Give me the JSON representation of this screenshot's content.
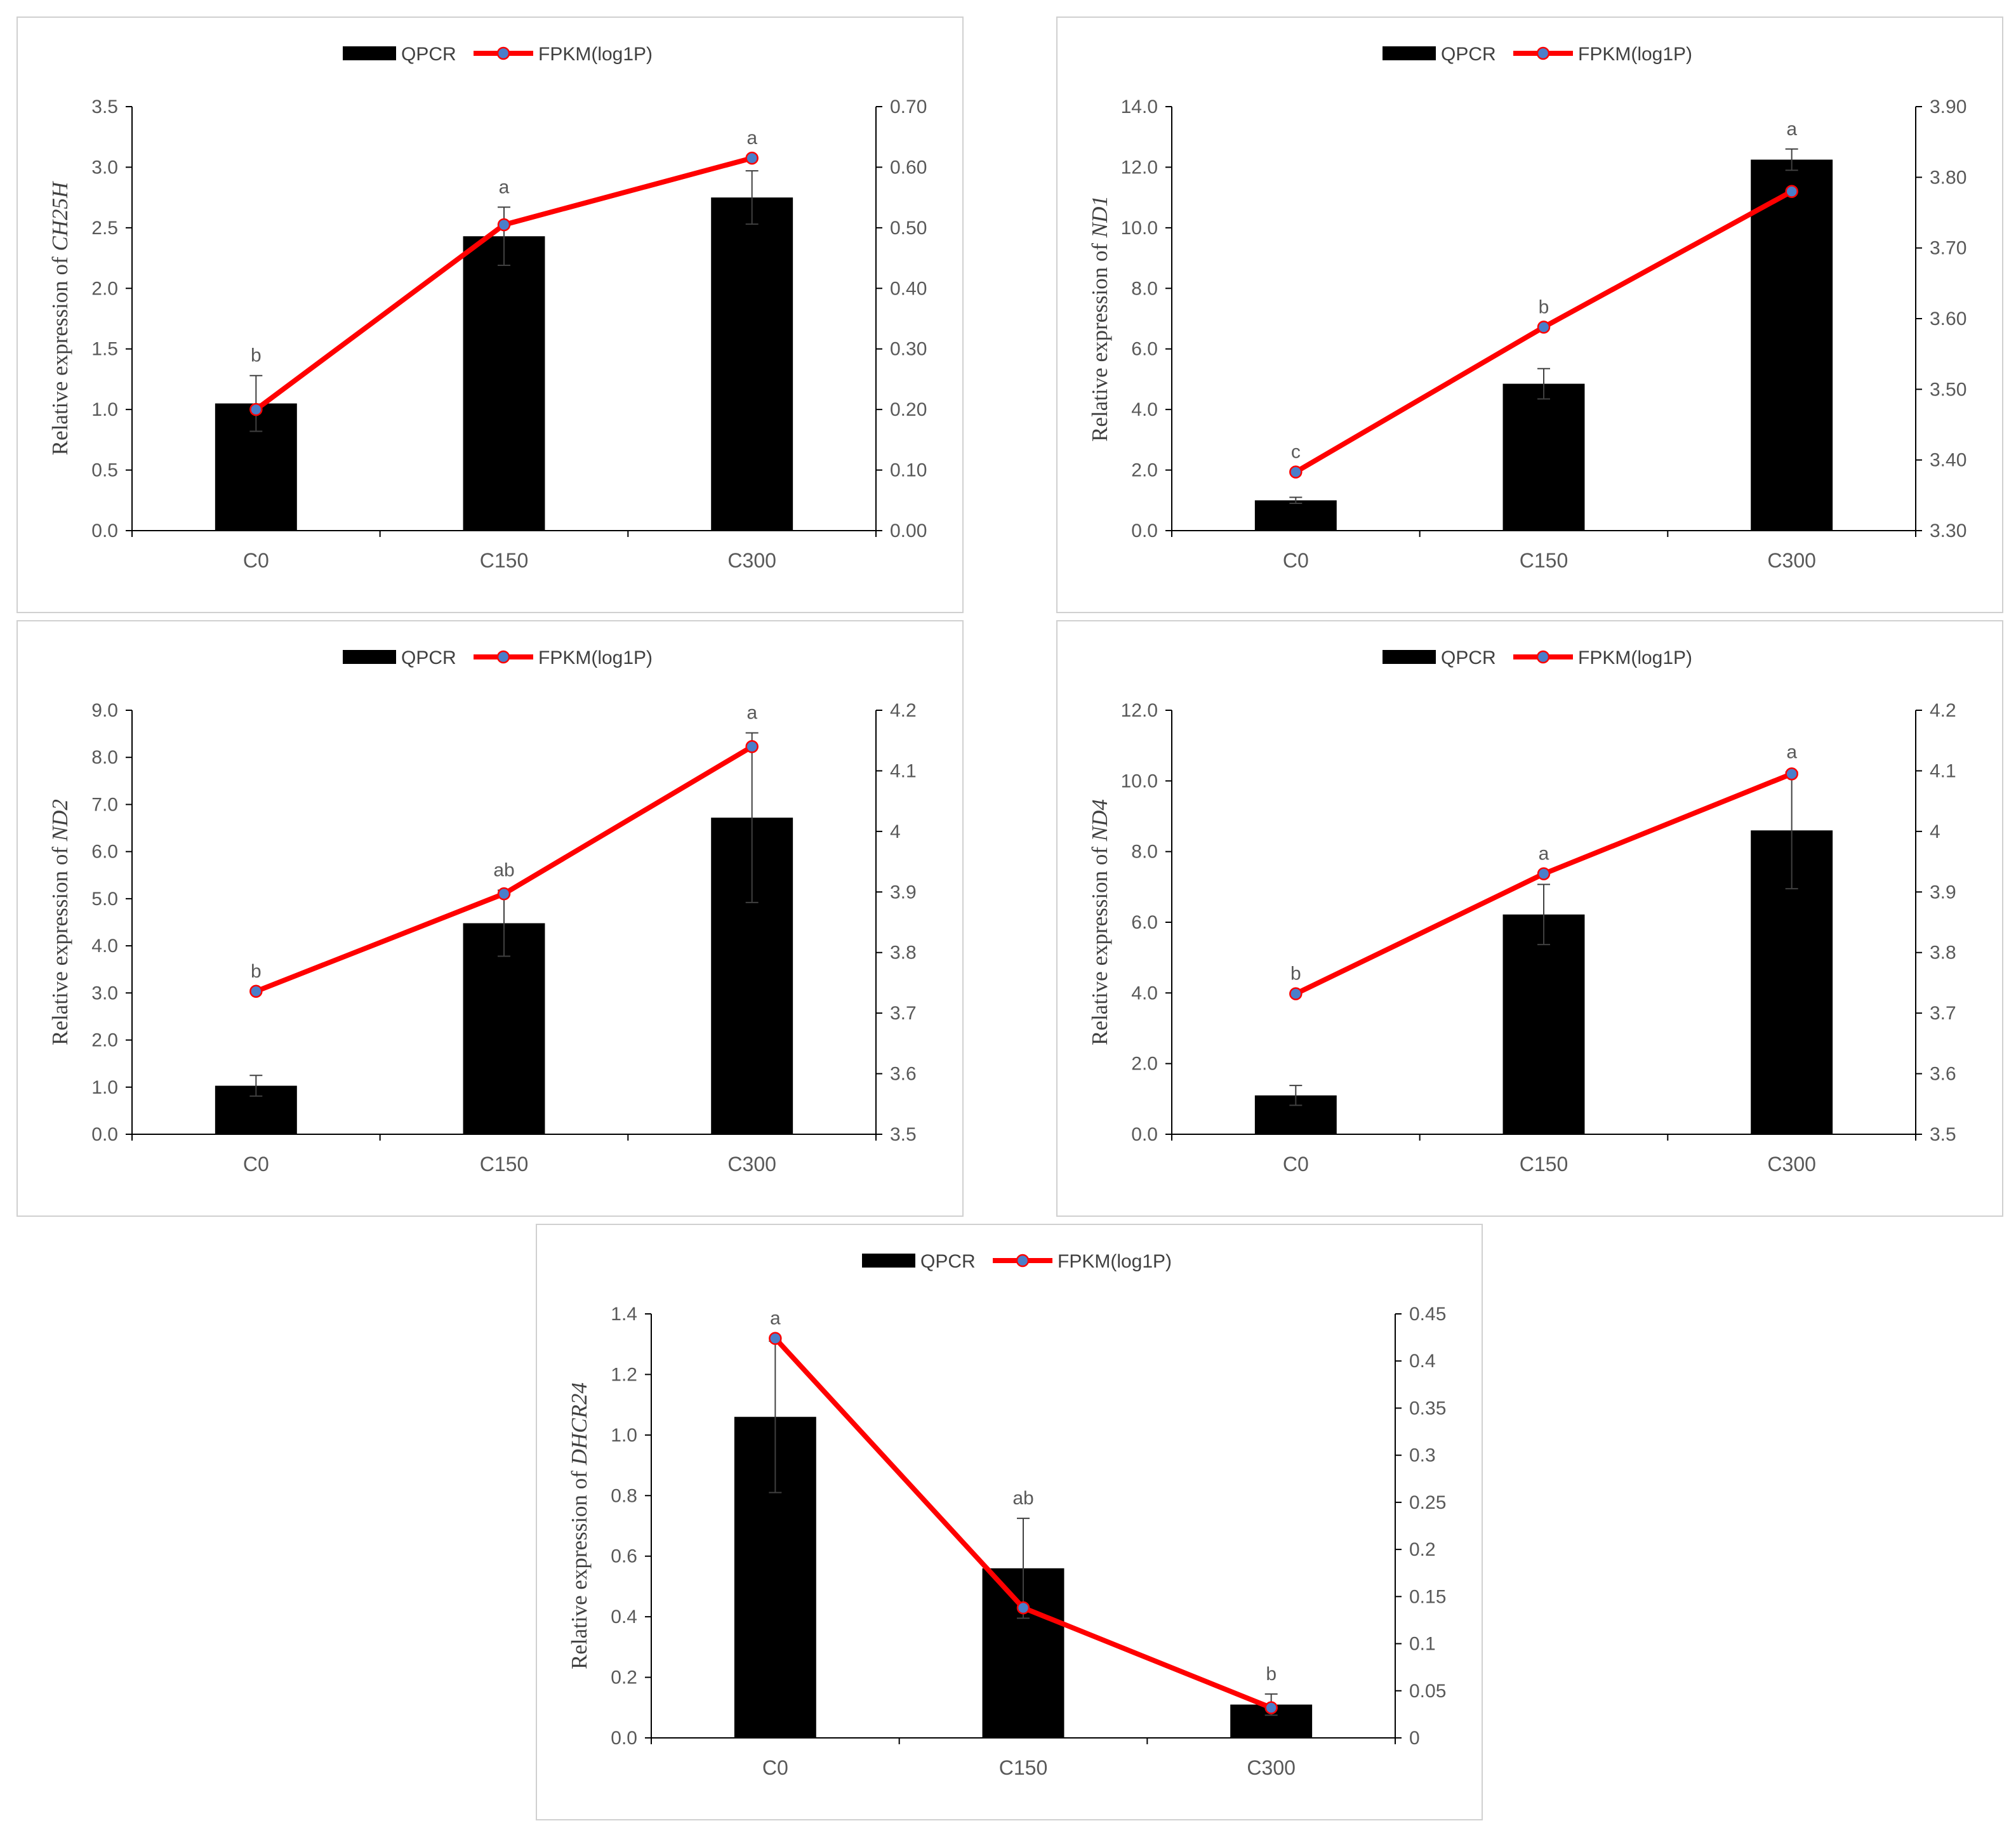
{
  "colors": {
    "bar": "#000000",
    "line": "#ff0000",
    "marker": "#4a7ec9",
    "axis": "#000000",
    "text": "#595959"
  },
  "chart_data": [
    {
      "type": "bar",
      "legend": [
        "QPCR",
        "FPKM(log1P)"
      ],
      "legend_position": "top",
      "categories": [
        "C0",
        "C150",
        "C300"
      ],
      "ylabel_prefix": "Relative expression of ",
      "ylabel_gene": "CH25H",
      "ylim": [
        0,
        3.5
      ],
      "y_ticks": [
        "0.0",
        "0.5",
        "1.0",
        "1.5",
        "2.0",
        "2.5",
        "3.0",
        "3.5"
      ],
      "y2lim": [
        0,
        0.7
      ],
      "y2_ticks": [
        "0.00",
        "0.10",
        "0.20",
        "0.30",
        "0.40",
        "0.50",
        "0.60",
        "0.70"
      ],
      "series": [
        {
          "name": "QPCR",
          "type": "bar",
          "values": [
            1.05,
            2.43,
            2.75
          ],
          "errors": [
            0.23,
            0.24,
            0.22
          ]
        },
        {
          "name": "FPKM(log1P)",
          "type": "line",
          "axis": "right",
          "values": [
            0.2,
            0.505,
            0.615
          ]
        }
      ],
      "significance": [
        "b",
        "a",
        "a"
      ],
      "grid": false
    },
    {
      "type": "bar",
      "legend": [
        "QPCR",
        "FPKM(log1P)"
      ],
      "legend_position": "top",
      "categories": [
        "C0",
        "C150",
        "C300"
      ],
      "ylabel_prefix": "Relative expression of ",
      "ylabel_gene": "ND1",
      "ylim": [
        0,
        14
      ],
      "y_ticks": [
        "0.0",
        "2.0",
        "4.0",
        "6.0",
        "8.0",
        "10.0",
        "12.0",
        "14.0"
      ],
      "y2lim": [
        3.3,
        3.9
      ],
      "y2_ticks": [
        "3.30",
        "3.40",
        "3.50",
        "3.60",
        "3.70",
        "3.80",
        "3.90"
      ],
      "series": [
        {
          "name": "QPCR",
          "type": "bar",
          "values": [
            1.0,
            4.85,
            12.25
          ],
          "errors": [
            0.1,
            0.5,
            0.35
          ]
        },
        {
          "name": "FPKM(log1P)",
          "type": "line",
          "axis": "right",
          "values": [
            3.383,
            3.588,
            3.78
          ]
        }
      ],
      "significance": [
        "c",
        "b",
        "a"
      ],
      "grid": false
    },
    {
      "type": "bar",
      "legend": [
        "QPCR",
        "FPKM(log1P)"
      ],
      "legend_position": "top",
      "categories": [
        "C0",
        "C150",
        "C300"
      ],
      "ylabel_prefix": "Relative expression of ",
      "ylabel_gene": "ND2",
      "ylim": [
        0,
        9
      ],
      "y_ticks": [
        "0.0",
        "1.0",
        "2.0",
        "3.0",
        "4.0",
        "5.0",
        "6.0",
        "7.0",
        "8.0",
        "9.0"
      ],
      "y2lim": [
        3.5,
        4.2
      ],
      "y2_ticks": [
        "3.5",
        "3.6",
        "3.7",
        "3.8",
        "3.9",
        "4",
        "4.1",
        "4.2"
      ],
      "series": [
        {
          "name": "QPCR",
          "type": "bar",
          "values": [
            1.03,
            4.48,
            6.72
          ],
          "errors": [
            0.22,
            0.7,
            1.8
          ]
        },
        {
          "name": "FPKM(log1P)",
          "type": "line",
          "axis": "right",
          "values": [
            3.736,
            3.897,
            4.14
          ]
        }
      ],
      "significance": [
        "b",
        "ab",
        "a"
      ],
      "grid": false
    },
    {
      "type": "bar",
      "legend": [
        "QPCR",
        "FPKM(log1P)"
      ],
      "legend_position": "top",
      "categories": [
        "C0",
        "C150",
        "C300"
      ],
      "ylabel_prefix": "Relative expression of ",
      "ylabel_gene": "ND4",
      "ylim": [
        0,
        12
      ],
      "y_ticks": [
        "0.0",
        "2.0",
        "4.0",
        "6.0",
        "8.0",
        "10.0",
        "12.0"
      ],
      "y2lim": [
        3.5,
        4.2
      ],
      "y2_ticks": [
        "3.5",
        "3.6",
        "3.7",
        "3.8",
        "3.9",
        "4",
        "4.1",
        "4.2"
      ],
      "series": [
        {
          "name": "QPCR",
          "type": "bar",
          "values": [
            1.1,
            6.22,
            8.6
          ],
          "errors": [
            0.28,
            0.85,
            1.65
          ]
        },
        {
          "name": "FPKM(log1P)",
          "type": "line",
          "axis": "right",
          "values": [
            3.732,
            3.93,
            4.095
          ]
        }
      ],
      "significance": [
        "b",
        "a",
        "a"
      ],
      "grid": false
    },
    {
      "type": "bar",
      "legend": [
        "QPCR",
        "FPKM(log1P)"
      ],
      "legend_position": "top",
      "categories": [
        "C0",
        "C150",
        "C300"
      ],
      "ylabel_prefix": "Relative expression of ",
      "ylabel_gene": "DHCR24",
      "ylim": [
        0,
        1.4
      ],
      "y_ticks": [
        "0.0",
        "0.2",
        "0.4",
        "0.6",
        "0.8",
        "1.0",
        "1.2",
        "1.4"
      ],
      "y2lim": [
        0,
        0.45
      ],
      "y2_ticks": [
        "0",
        "0.05",
        "0.1",
        "0.15",
        "0.2",
        "0.25",
        "0.3",
        "0.35",
        "0.4",
        "0.45"
      ],
      "series": [
        {
          "name": "QPCR",
          "type": "bar",
          "values": [
            1.06,
            0.56,
            0.11
          ],
          "errors": [
            0.25,
            0.165,
            0.035
          ]
        },
        {
          "name": "FPKM(log1P)",
          "type": "line",
          "axis": "right",
          "values": [
            0.424,
            0.138,
            0.032
          ]
        }
      ],
      "significance": [
        "a",
        "ab",
        "b"
      ],
      "grid": false
    }
  ]
}
